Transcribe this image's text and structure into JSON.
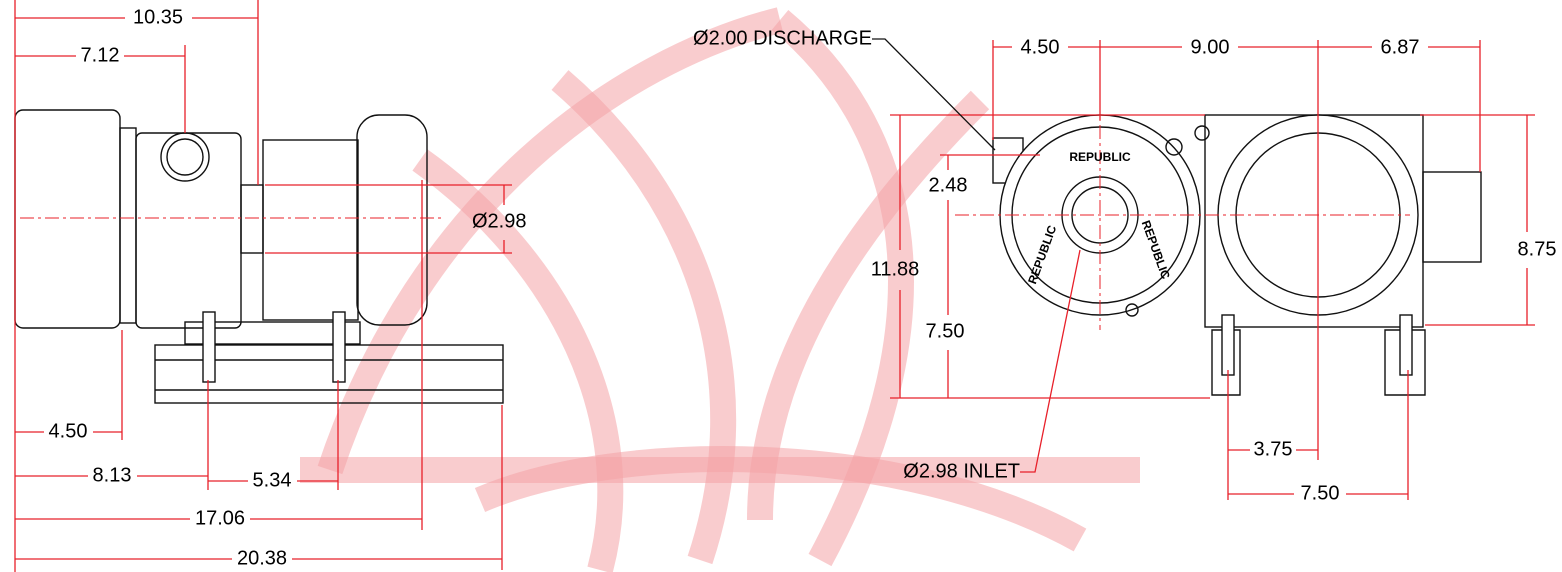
{
  "side_view": {
    "dimensions": [
      "10.35",
      "7.12",
      "4.50",
      "8.13",
      "5.34",
      "17.06",
      "20.38",
      "Ø2.98"
    ]
  },
  "end_view": {
    "dimensions": [
      "4.50",
      "9.00",
      "6.87",
      "2.48",
      "11.88",
      "7.50",
      "8.75",
      "3.75",
      "7.50"
    ],
    "callouts": [
      "Ø2.00 DISCHARGE",
      "Ø2.98 INLET"
    ],
    "nameplate": [
      "REPUBLIC",
      "REPUBLIC",
      "REPUBLIC"
    ]
  }
}
